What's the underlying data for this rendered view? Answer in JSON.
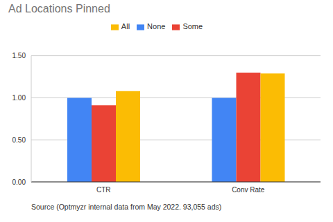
{
  "chart_data": {
    "type": "bar",
    "title": "Ad Locations Pinned",
    "categories": [
      "CTR",
      "Conv Rate"
    ],
    "series": [
      {
        "name": "None",
        "color": "#4285f4",
        "values": [
          1.0,
          1.0
        ]
      },
      {
        "name": "Some",
        "color": "#ea4335",
        "values": [
          0.91,
          1.3
        ]
      },
      {
        "name": "All",
        "color": "#fbbc04",
        "values": [
          1.08,
          1.29
        ]
      }
    ],
    "ylim": [
      0,
      1.5
    ],
    "yticks": [
      {
        "value": 0,
        "label": "0.00"
      },
      {
        "value": 0.5,
        "label": "0.50"
      },
      {
        "value": 1,
        "label": "1.00"
      },
      {
        "value": 1.5,
        "label": "1.50"
      }
    ],
    "grid": true,
    "legend": "top",
    "annotations": [
      "Source (Optmyzr internal data from May 2022. 93,055 ads)"
    ]
  }
}
